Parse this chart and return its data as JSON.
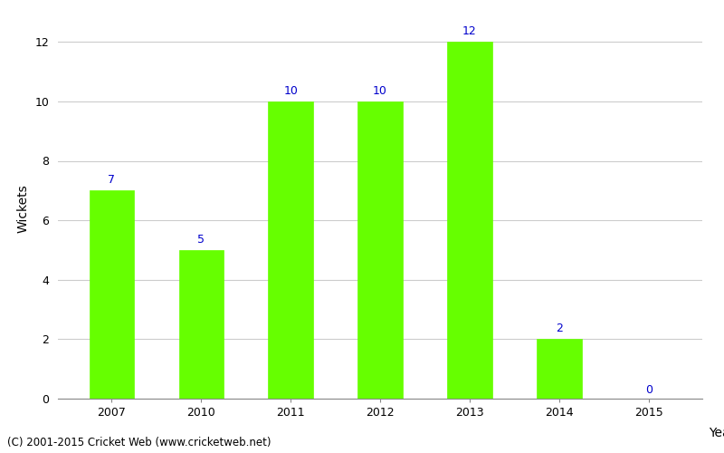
{
  "years": [
    "2007",
    "2010",
    "2011",
    "2012",
    "2013",
    "2014",
    "2015"
  ],
  "values": [
    7,
    5,
    10,
    10,
    12,
    2,
    0
  ],
  "bar_color": "#66ff00",
  "bar_edge_color": "#66ff00",
  "ylabel": "Wickets",
  "xlabel_label": "Year",
  "ylim": [
    0,
    12.8
  ],
  "yticks": [
    0,
    2,
    4,
    6,
    8,
    10,
    12
  ],
  "label_color": "#0000cc",
  "label_fontsize": 9,
  "axis_label_fontsize": 10,
  "tick_fontsize": 9,
  "footer_text": "(C) 2001-2015 Cricket Web (www.cricketweb.net)",
  "footer_fontsize": 8.5,
  "background_color": "#ffffff",
  "grid_color": "#cccccc"
}
